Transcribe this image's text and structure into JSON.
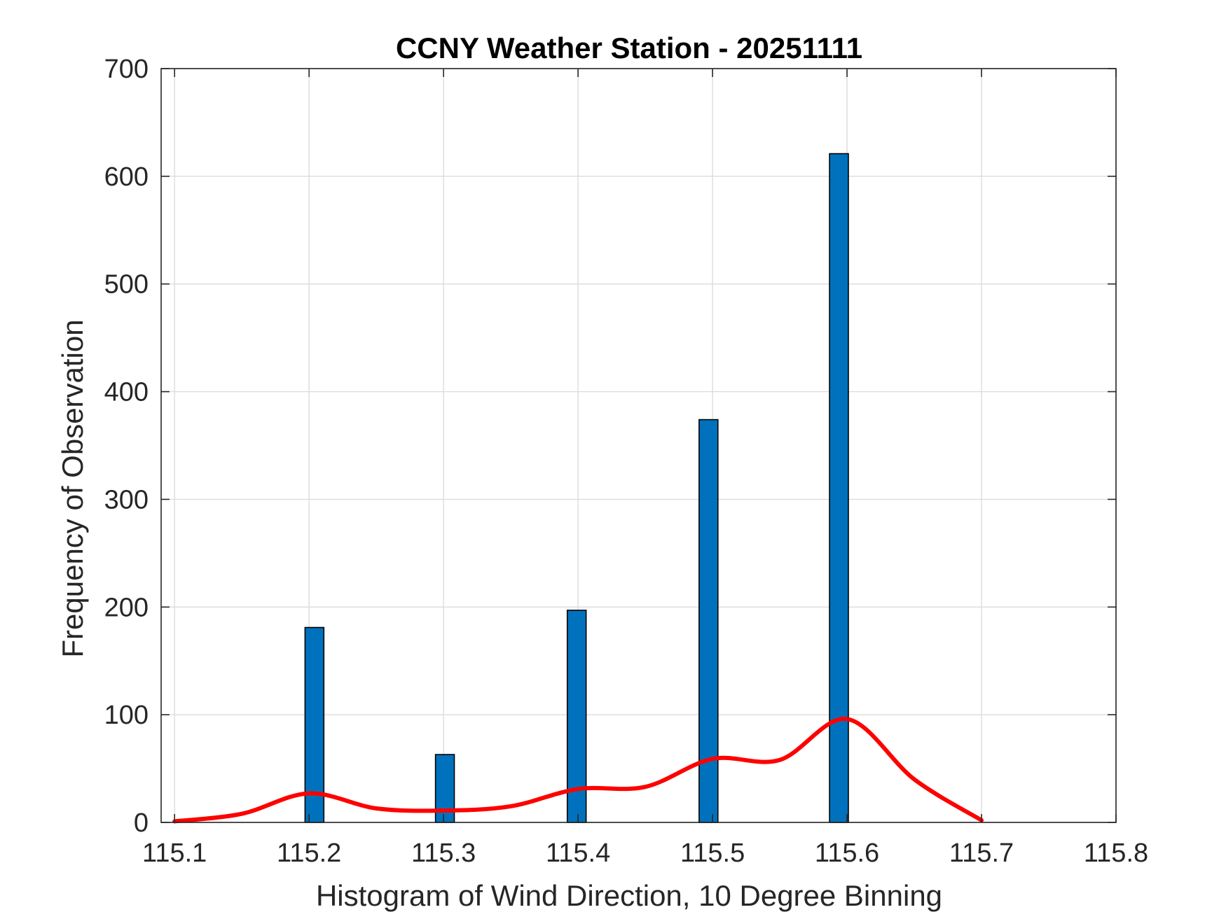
{
  "chart_data": {
    "type": "bar",
    "title": "CCNY Weather Station - 20251111",
    "xlabel": "Histogram of Wind Direction, 10 Degree Binning",
    "ylabel": "Frequency of Observation",
    "xlim": [
      115.09,
      115.8
    ],
    "ylim": [
      0,
      700
    ],
    "xticks": [
      "115.1",
      "115.2",
      "115.3",
      "115.4",
      "115.5",
      "115.6",
      "115.7",
      "115.8"
    ],
    "yticks": [
      "0",
      "100",
      "200",
      "300",
      "400",
      "500",
      "600",
      "700"
    ],
    "grid": true,
    "bars": [
      {
        "x": 115.204,
        "value": 181
      },
      {
        "x": 115.301,
        "value": 63
      },
      {
        "x": 115.399,
        "value": 197
      },
      {
        "x": 115.497,
        "value": 374
      },
      {
        "x": 115.594,
        "value": 621
      }
    ],
    "bar_width": 0.014,
    "curve": {
      "x": [
        115.1,
        115.15,
        115.2,
        115.25,
        115.3,
        115.35,
        115.4,
        115.45,
        115.5,
        115.55,
        115.6,
        115.65,
        115.7
      ],
      "y": [
        1,
        8,
        27,
        13,
        11,
        15,
        31,
        33,
        59,
        58,
        96,
        40,
        2
      ]
    },
    "colors": {
      "bar_fill": "#0072bd",
      "bar_edge": "#000000",
      "curve": "#ff0000",
      "grid": "#dcdcdc",
      "axes": "#262626"
    }
  }
}
